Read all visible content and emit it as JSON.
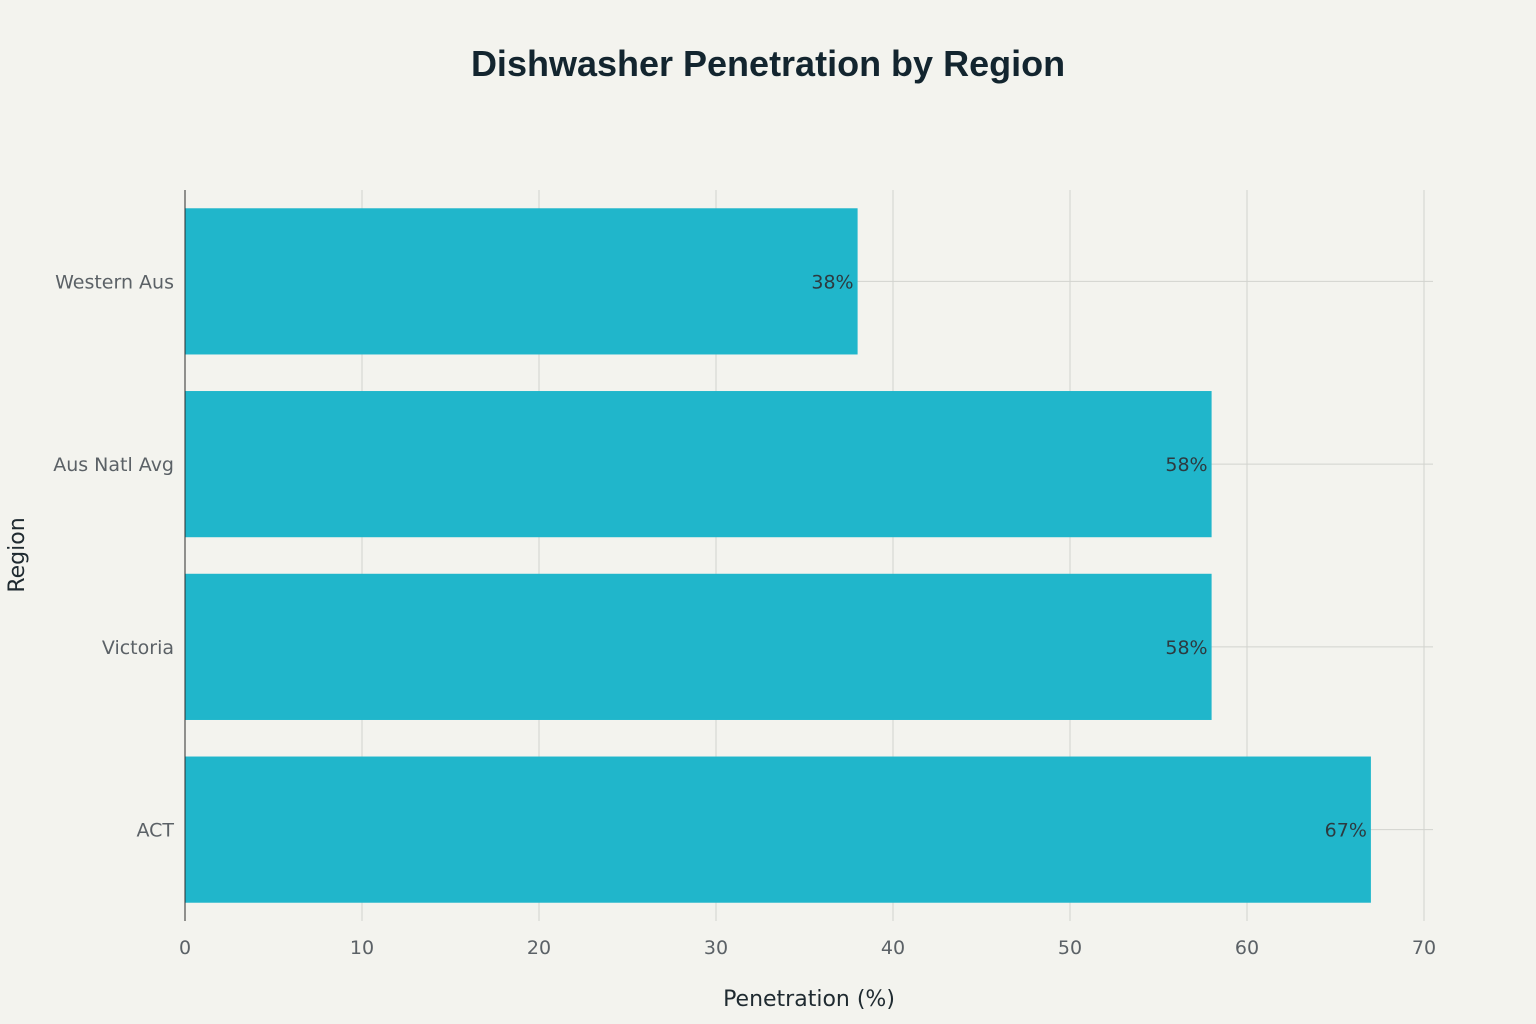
{
  "chart_data": {
    "type": "bar",
    "orientation": "horizontal",
    "title": "Dishwasher Penetration by Region",
    "xlabel": "Penetration (%)",
    "ylabel": "Region",
    "categories": [
      "Western Aus",
      "Aus Natl Avg",
      "Victoria",
      "ACT"
    ],
    "values": [
      38,
      58,
      58,
      67
    ],
    "data_labels": [
      "38%",
      "58%",
      "58%",
      "67%"
    ],
    "xlim": [
      0,
      70
    ],
    "x_ticks": [
      0,
      10,
      20,
      30,
      40,
      50,
      60,
      70
    ],
    "grid": true,
    "bar_color": "#20b6cb",
    "background_color": "#f3f3ee"
  }
}
